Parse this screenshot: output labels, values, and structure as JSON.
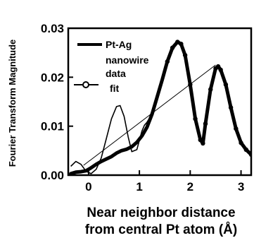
{
  "chart_data": {
    "type": "line",
    "ylabel": "Fourier Transform Magnitude",
    "xlabel_lines": [
      "Near neighbor distance",
      "from central Pt atom (Å)"
    ],
    "xlim": [
      -0.4,
      3.2
    ],
    "ylim": [
      0,
      0.03
    ],
    "xticks": [
      0,
      1,
      2,
      3
    ],
    "xtick_labels": [
      "0",
      "1",
      "2",
      "3"
    ],
    "yticks": [
      0,
      0.01,
      0.02,
      0.03
    ],
    "ytick_labels": [
      "0.00",
      "0.01",
      "0.02",
      "0.03"
    ],
    "grid": false,
    "legend": {
      "position": "top-left",
      "entries": [
        {
          "label_lines": [
            "Pt-Ag",
            "nanowire",
            "data"
          ],
          "style": "thick-line"
        },
        {
          "label_lines": [
            "fit"
          ],
          "style": "line-open-circle"
        }
      ]
    },
    "series": [
      {
        "style": "data",
        "x": [
          -0.35,
          -0.25,
          -0.15,
          -0.05,
          0.05,
          0.15,
          0.25,
          0.35,
          0.45,
          0.55,
          0.65,
          0.75,
          0.85,
          0.95,
          1.05,
          1.15,
          1.25,
          1.35,
          1.45,
          1.55,
          1.65,
          1.75,
          1.82,
          1.9,
          2.0,
          2.1,
          2.2,
          2.25,
          2.3,
          2.4,
          2.5,
          2.55,
          2.6,
          2.7,
          2.8,
          2.9,
          3.0,
          3.1,
          3.2
        ],
        "y": [
          0.0003,
          0.0006,
          0.0007,
          0.0009,
          0.0015,
          0.0022,
          0.0028,
          0.0033,
          0.0038,
          0.0045,
          0.005,
          0.0053,
          0.0058,
          0.0067,
          0.008,
          0.0098,
          0.0125,
          0.016,
          0.0195,
          0.0232,
          0.026,
          0.0272,
          0.0268,
          0.0245,
          0.0185,
          0.0115,
          0.0072,
          0.0065,
          0.0105,
          0.0175,
          0.0218,
          0.0222,
          0.0215,
          0.0185,
          0.0138,
          0.0095,
          0.0066,
          0.0052,
          0.0042
        ]
      },
      {
        "style": "fit",
        "x": [
          -0.35,
          -0.25,
          -0.15,
          -0.05,
          0.05,
          0.15,
          0.25,
          0.35,
          0.45,
          0.55,
          0.62,
          0.7,
          0.78,
          0.85,
          0.95,
          1.05,
          1.1,
          1.15,
          1.25,
          1.35,
          1.45,
          1.55,
          1.65,
          1.75,
          1.82,
          1.9,
          2.0,
          2.1,
          2.2,
          2.25,
          2.3,
          2.4,
          2.5,
          2.55,
          2.6,
          2.7,
          2.8,
          2.9,
          3.0,
          3.1,
          3.2
        ],
        "y": [
          0.0018,
          0.0028,
          0.0022,
          0.0008,
          0.0003,
          0.0012,
          0.0035,
          0.0075,
          0.0115,
          0.014,
          0.0142,
          0.012,
          0.0078,
          0.0048,
          0.0052,
          0.009,
          0.0102,
          0.0108,
          0.0125,
          0.016,
          0.0195,
          0.0232,
          0.026,
          0.0272,
          0.0268,
          0.0245,
          0.0185,
          0.0115,
          0.0072,
          0.0065,
          0.0105,
          0.0175,
          0.0218,
          0.0222,
          0.0215,
          0.0185,
          0.0138,
          0.0095,
          0.0066,
          0.0052,
          0.0042
        ]
      },
      {
        "style": "thin-reference-line",
        "x": [
          -0.1,
          2.5
        ],
        "y": [
          0.002,
          0.0225
        ]
      }
    ]
  }
}
